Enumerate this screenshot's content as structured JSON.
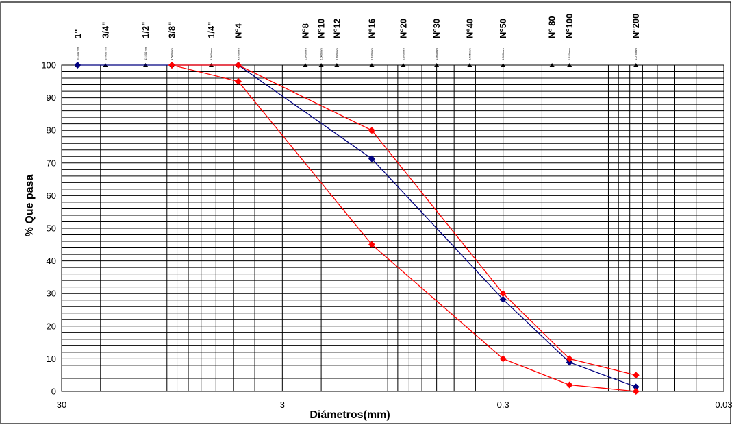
{
  "chart_data": {
    "type": "line",
    "title": "",
    "xlabel": "Diámetros(mm)",
    "ylabel": "% Que pasa",
    "x_scale": "log",
    "x_reversed": true,
    "xlim": [
      30,
      0.03
    ],
    "ylim": [
      0,
      100
    ],
    "y_ticks": [
      "0",
      "10",
      "20",
      "30",
      "40",
      "50",
      "60",
      "70",
      "80",
      "90",
      "100"
    ],
    "x_ticks": [
      {
        "value": 30,
        "label": "30"
      },
      {
        "value": 3,
        "label": "3"
      },
      {
        "value": 0.3,
        "label": "0.3"
      },
      {
        "value": 0.03,
        "label": "0.03"
      }
    ],
    "grid": true,
    "sieves": [
      {
        "name": "1\"",
        "mm": 25.4,
        "mm_label": "25.400 mm"
      },
      {
        "name": "3/4\"",
        "mm": 19.0,
        "mm_label": "19.000 mm"
      },
      {
        "name": "1/2\"",
        "mm": 12.5,
        "mm_label": "12.500 mm"
      },
      {
        "name": "3/8\"",
        "mm": 9.5,
        "mm_label": "9.500 mm"
      },
      {
        "name": "1/4\"",
        "mm": 6.3,
        "mm_label": "6.300 mm"
      },
      {
        "name": "N°4",
        "mm": 4.75,
        "mm_label": "4.750 mm"
      },
      {
        "name": "N°8",
        "mm": 2.36,
        "mm_label": "2.360 mm"
      },
      {
        "name": "N°10",
        "mm": 2.0,
        "mm_label": "2.000 mm"
      },
      {
        "name": "N°12",
        "mm": 1.7,
        "mm_label": "1.700 mm"
      },
      {
        "name": "N°16",
        "mm": 1.18,
        "mm_label": "1.180 mm"
      },
      {
        "name": "N°20",
        "mm": 0.85,
        "mm_label": "0.850 mm"
      },
      {
        "name": "N°30",
        "mm": 0.6,
        "mm_label": "0.600 mm"
      },
      {
        "name": "N°40",
        "mm": 0.425,
        "mm_label": "0.425 mm"
      },
      {
        "name": "N°50",
        "mm": 0.3,
        "mm_label": "0.300 mm"
      },
      {
        "name": "N° 80",
        "mm": 0.18,
        "mm_label": ""
      },
      {
        "name": "N°100",
        "mm": 0.15,
        "mm_label": "0.150 mm"
      },
      {
        "name": "N°200",
        "mm": 0.075,
        "mm_label": "0.075 mm"
      }
    ],
    "series": [
      {
        "color": "#000080",
        "marker": "diamond",
        "points": [
          {
            "x": 25.4,
            "y": 100
          },
          {
            "x": 9.5,
            "y": 100
          },
          {
            "x": 4.75,
            "y": 100
          },
          {
            "x": 1.18,
            "y": 71.3
          },
          {
            "x": 0.3,
            "y": 28.2
          },
          {
            "x": 0.15,
            "y": 8.9
          },
          {
            "x": 0.075,
            "y": 1.4
          }
        ]
      },
      {
        "color": "#ff0000",
        "marker": "diamond",
        "points": [
          {
            "x": 9.5,
            "y": 100
          },
          {
            "x": 4.75,
            "y": 100
          },
          {
            "x": 1.18,
            "y": 80
          },
          {
            "x": 0.3,
            "y": 30
          },
          {
            "x": 0.15,
            "y": 10
          },
          {
            "x": 0.075,
            "y": 5
          }
        ]
      },
      {
        "color": "#ff0000",
        "marker": "diamond",
        "points": [
          {
            "x": 9.5,
            "y": 100
          },
          {
            "x": 4.75,
            "y": 95
          },
          {
            "x": 1.18,
            "y": 45
          },
          {
            "x": 0.3,
            "y": 10
          },
          {
            "x": 0.15,
            "y": 2
          },
          {
            "x": 0.075,
            "y": 0
          }
        ]
      }
    ]
  }
}
